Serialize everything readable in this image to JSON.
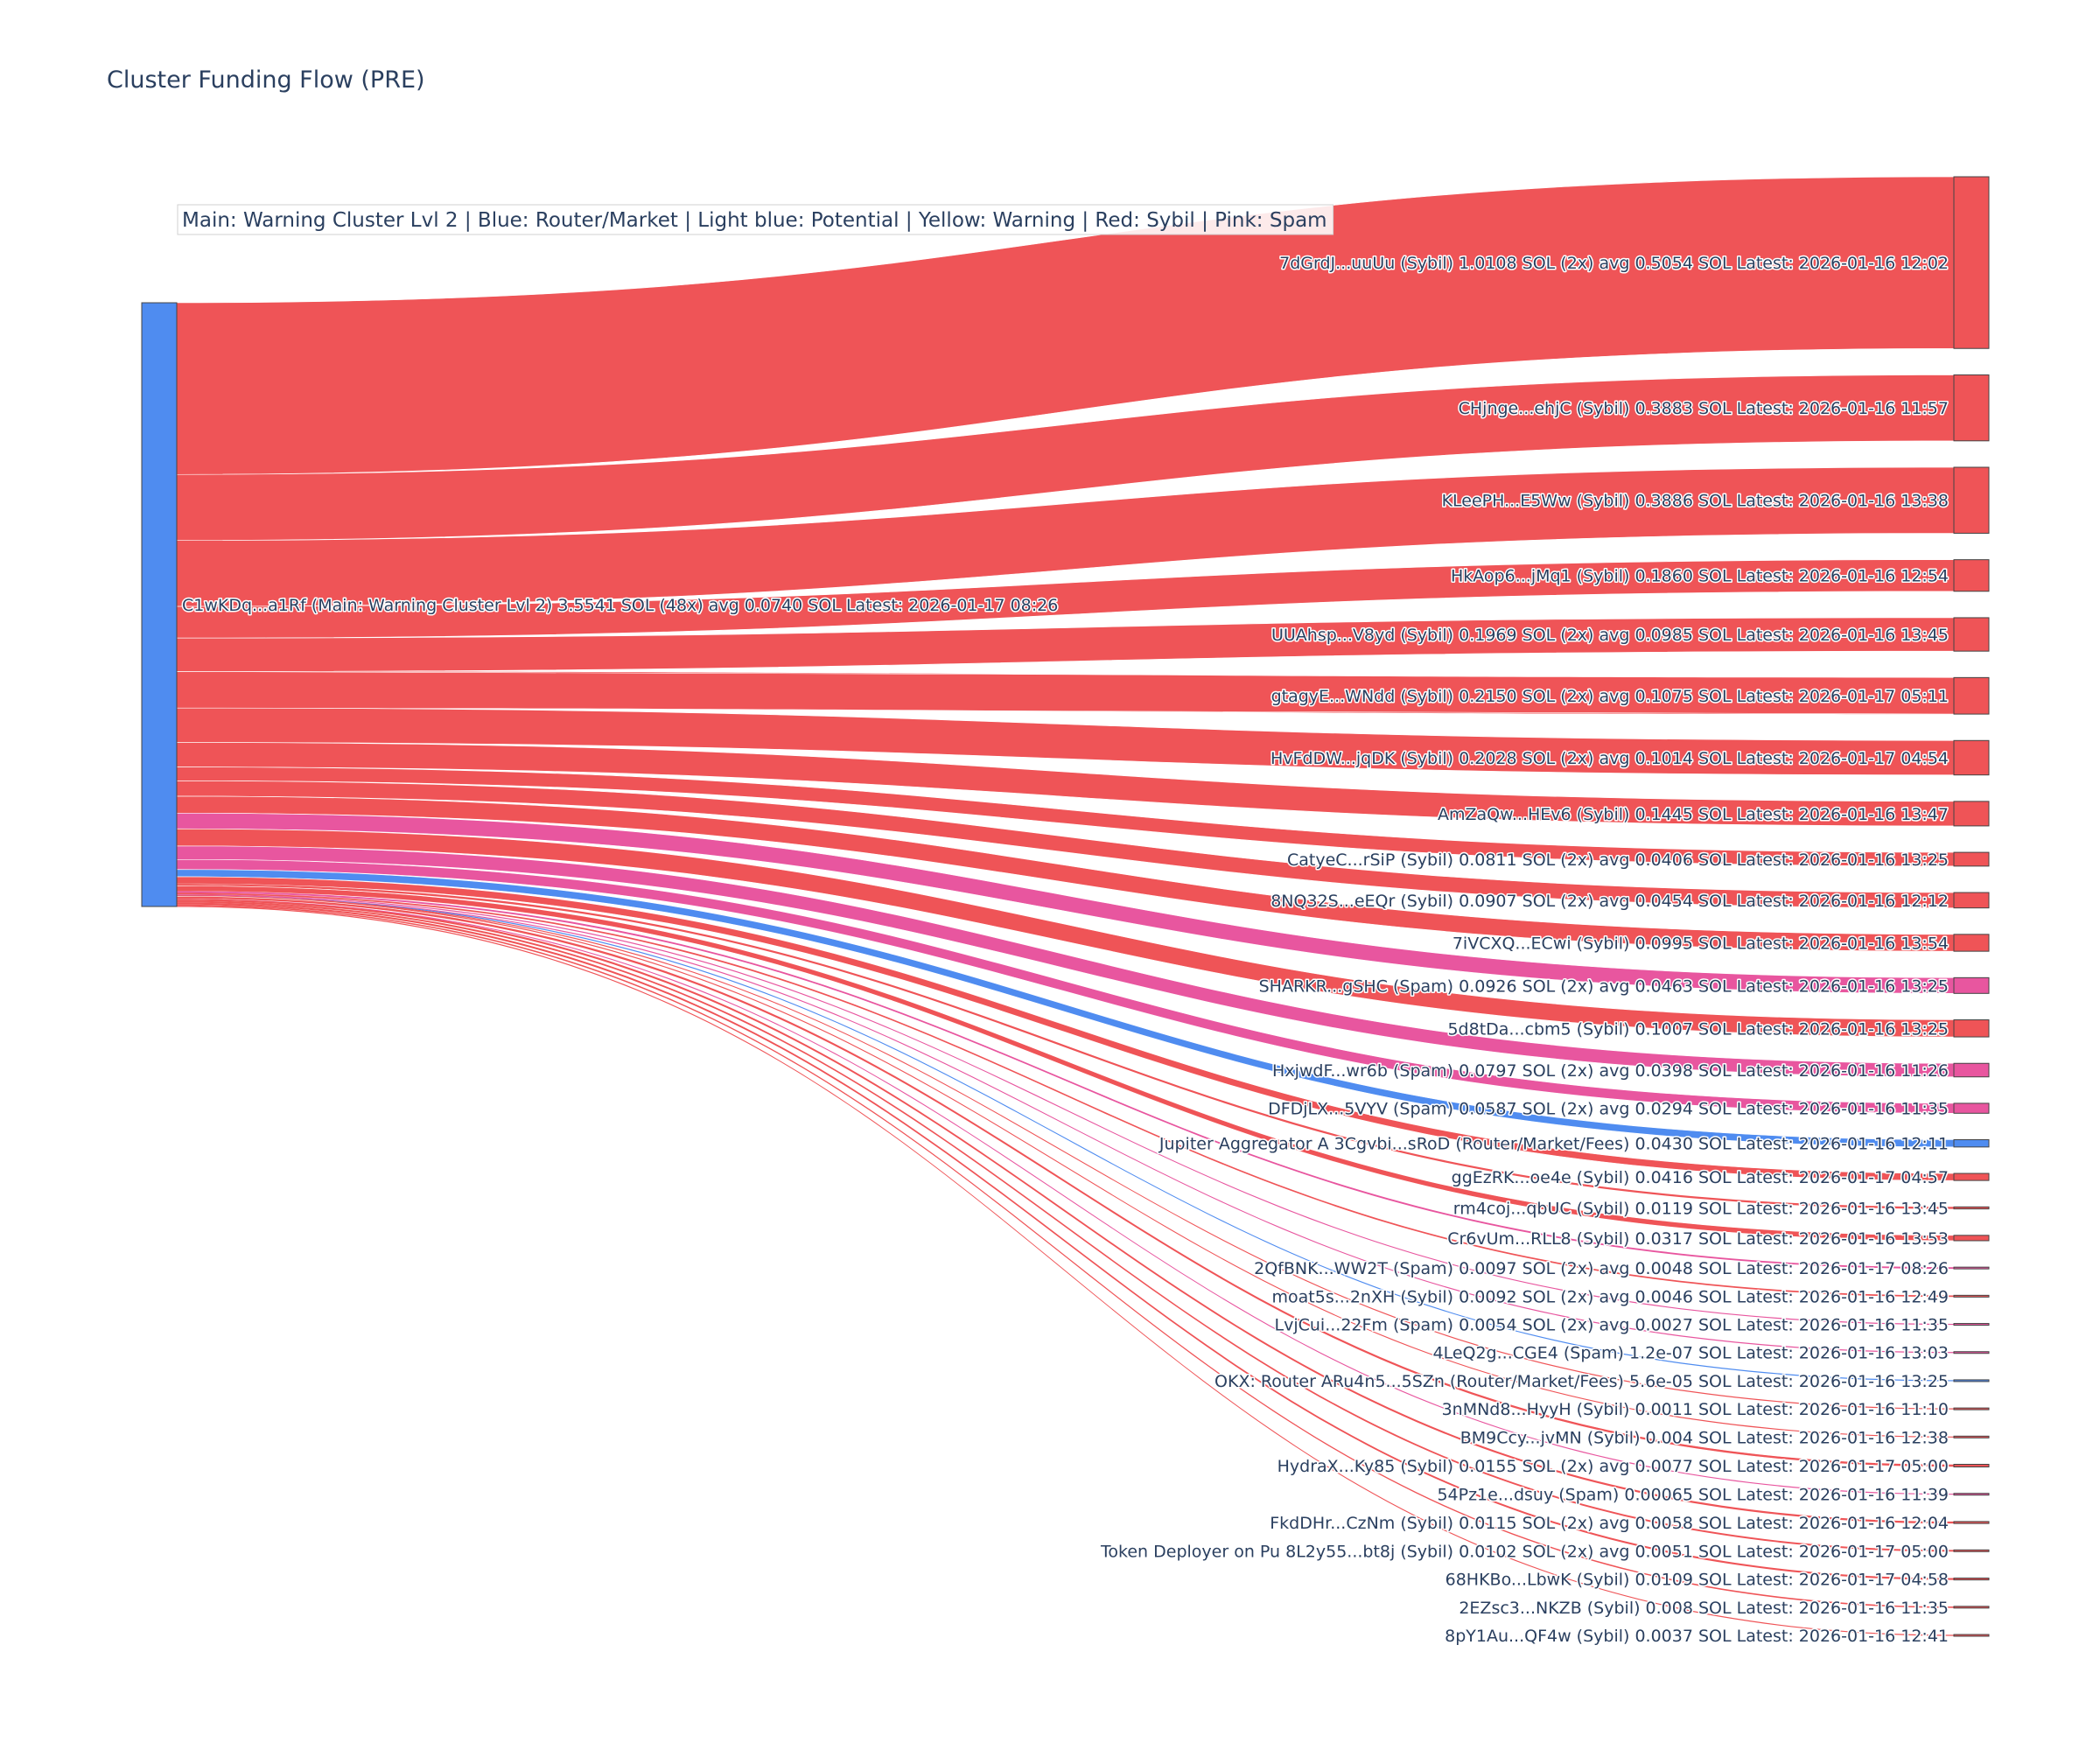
{
  "colors": {
    "sybil": "#ef5457",
    "spam": "#e8569f",
    "router": "#4f8cf0",
    "source": "#4f8cf0",
    "text": "#2a3f5f"
  },
  "chart_data": {
    "type": "sankey",
    "title": "Cluster Funding Flow (PRE)",
    "legend": "Main: Warning Cluster Lvl 2  |  Blue: Router/Market | Light blue: Potential | Yellow: Warning | Red: Sybil | Pink: Spam",
    "source": {
      "label": "C1wKDq...a1Rf (Main: Warning Cluster Lvl 2) 3.5541 SOL (48x) avg 0.0740 SOL Latest: 2026-01-17 08:26",
      "value": 3.5541
    },
    "targets": [
      {
        "label": "7dGrdJ...uuUu (Sybil) 1.0108 SOL (2x) avg 0.5054 SOL Latest: 2026-01-16 12:02",
        "value": 1.0108,
        "category": "sybil"
      },
      {
        "label": "CHjnge...ehjC (Sybil) 0.3883 SOL Latest: 2026-01-16 11:57",
        "value": 0.3883,
        "category": "sybil"
      },
      {
        "label": "KLeePH...E5Ww (Sybil) 0.3886 SOL Latest: 2026-01-16 13:38",
        "value": 0.3886,
        "category": "sybil"
      },
      {
        "label": "HkAop6...jMq1 (Sybil) 0.1860 SOL Latest: 2026-01-16 12:54",
        "value": 0.186,
        "category": "sybil"
      },
      {
        "label": "UUAhsp...V8yd (Sybil) 0.1969 SOL (2x) avg 0.0985 SOL Latest: 2026-01-16 13:45",
        "value": 0.1969,
        "category": "sybil"
      },
      {
        "label": "gtagyE...WNdd (Sybil) 0.2150 SOL (2x) avg 0.1075 SOL Latest: 2026-01-17 05:11",
        "value": 0.215,
        "category": "sybil"
      },
      {
        "label": "HvFdDW...jqDK (Sybil) 0.2028 SOL (2x) avg 0.1014 SOL Latest: 2026-01-17 04:54",
        "value": 0.2028,
        "category": "sybil"
      },
      {
        "label": "AmZaQw...HEv6 (Sybil) 0.1445 SOL Latest: 2026-01-16 13:47",
        "value": 0.1445,
        "category": "sybil"
      },
      {
        "label": "CatyeC...rSiP (Sybil) 0.0811 SOL (2x) avg 0.0406 SOL Latest: 2026-01-16 13:25",
        "value": 0.0811,
        "category": "sybil"
      },
      {
        "label": "8NQ32S...eEQr (Sybil) 0.0907 SOL (2x) avg 0.0454 SOL Latest: 2026-01-16 12:12",
        "value": 0.0907,
        "category": "sybil"
      },
      {
        "label": "7iVCXQ...ECwi (Sybil) 0.0995 SOL Latest: 2026-01-16 13:54",
        "value": 0.0995,
        "category": "sybil"
      },
      {
        "label": "SHARKR...gSHC (Spam) 0.0926 SOL (2x) avg 0.0463 SOL Latest: 2026-01-16 13:25",
        "value": 0.0926,
        "category": "spam"
      },
      {
        "label": "5d8tDa...cbm5 (Sybil) 0.1007 SOL Latest: 2026-01-16 13:25",
        "value": 0.1007,
        "category": "sybil"
      },
      {
        "label": "HxjwdF...wr6b (Spam) 0.0797 SOL (2x) avg 0.0398 SOL Latest: 2026-01-16 11:26",
        "value": 0.0797,
        "category": "spam"
      },
      {
        "label": "DFDjLX...5VYV (Spam) 0.0587 SOL (2x) avg 0.0294 SOL Latest: 2026-01-16 11:35",
        "value": 0.0587,
        "category": "spam"
      },
      {
        "label": "Jupiter Aggregator A 3Cgvbi...sRoD (Router/Market/Fees) 0.0430 SOL Latest: 2026-01-16 12:11",
        "value": 0.043,
        "category": "router"
      },
      {
        "label": "ggEzRK...oe4e (Sybil) 0.0416 SOL Latest: 2026-01-17 04:57",
        "value": 0.0416,
        "category": "sybil"
      },
      {
        "label": "rm4coj...qbUC (Sybil) 0.0119 SOL Latest: 2026-01-16 13:45",
        "value": 0.0119,
        "category": "sybil"
      },
      {
        "label": "Cr6vUm...RLL8 (Sybil) 0.0317 SOL Latest: 2026-01-16 13:53",
        "value": 0.0317,
        "category": "sybil"
      },
      {
        "label": "2QfBNK...WW2T (Spam) 0.0097 SOL (2x) avg 0.0048 SOL Latest: 2026-01-17 08:26",
        "value": 0.0097,
        "category": "spam"
      },
      {
        "label": "moat5s...2nXH (Sybil) 0.0092 SOL (2x) avg 0.0046 SOL Latest: 2026-01-16 12:49",
        "value": 0.0092,
        "category": "sybil"
      },
      {
        "label": "LvjCui...22Fm (Spam) 0.0054 SOL (2x) avg 0.0027 SOL Latest: 2026-01-16 11:35",
        "value": 0.0054,
        "category": "spam"
      },
      {
        "label": "4LeQ2g...CGE4 (Spam) 1.2e-07 SOL Latest: 2026-01-16 13:03",
        "value": 1.2e-07,
        "category": "spam"
      },
      {
        "label": "OKX: Router ARu4n5...5SZn (Router/Market/Fees) 5.6e-05 SOL Latest: 2026-01-16 13:25",
        "value": 5.6e-05,
        "category": "router"
      },
      {
        "label": "3nMNd8...HyyH (Sybil) 0.0011 SOL Latest: 2026-01-16 11:10",
        "value": 0.0011,
        "category": "sybil"
      },
      {
        "label": "BM9Ccy...jvMN (Sybil) 0.004 SOL Latest: 2026-01-16 12:38",
        "value": 0.004,
        "category": "sybil"
      },
      {
        "label": "HydraX...Ky85 (Sybil) 0.0155 SOL (2x) avg 0.0077 SOL Latest: 2026-01-17 05:00",
        "value": 0.0155,
        "category": "sybil"
      },
      {
        "label": "54Pz1e...dsuy (Spam) 0.00065 SOL Latest: 2026-01-16 11:39",
        "value": 0.00065,
        "category": "spam"
      },
      {
        "label": "FkdDHr...CzNm (Sybil) 0.0115 SOL (2x) avg 0.0058 SOL Latest: 2026-01-16 12:04",
        "value": 0.0115,
        "category": "sybil"
      },
      {
        "label": "Token Deployer on Pu 8L2y55...bt8j (Sybil) 0.0102 SOL (2x) avg 0.0051 SOL Latest: 2026-01-17 05:00",
        "value": 0.0102,
        "category": "sybil"
      },
      {
        "label": "68HKBo...LbwK (Sybil) 0.0109 SOL Latest: 2026-01-17 04:58",
        "value": 0.0109,
        "category": "sybil"
      },
      {
        "label": "2EZsc3...NKZB (Sybil) 0.008 SOL Latest: 2026-01-16 11:35",
        "value": 0.008,
        "category": "sybil"
      },
      {
        "label": "8pY1Au...QF4w (Sybil) 0.0037 SOL Latest: 2026-01-16 12:41",
        "value": 0.0037,
        "category": "sybil"
      }
    ]
  }
}
